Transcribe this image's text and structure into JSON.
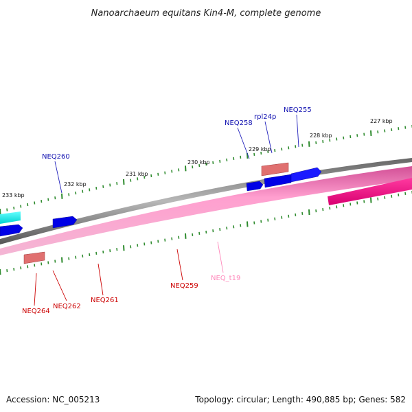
{
  "title": "Nanoarchaeum equitans Kin4-M, complete genome",
  "footer": {
    "accession": "Accession: NC_005213",
    "summary": "Topology: circular; Length: 490,885 bp; Genes: 582"
  },
  "colors": {
    "forward_gene": "#0000e6",
    "forward_label": "#1010b0",
    "reverse_label": "#cc0000",
    "rna_gene": "#e07070",
    "trna_label": "#ff88bb",
    "backbone": "#888888",
    "gc_band": "#ff99cc",
    "tick": "#2e8b2e",
    "highlight_forward": "#00e5e5",
    "highlight_reverse": "#ee1188"
  },
  "kbp_labels": [
    "227 kbp",
    "228 kbp",
    "229 kbp",
    "230 kbp",
    "231 kbp",
    "232 kbp",
    "233 kbp"
  ],
  "forward_labels": [
    "NEQ258",
    "rpl24p",
    "NEQ255",
    "NEQ260"
  ],
  "reverse_labels": [
    "NEQ264",
    "NEQ262",
    "NEQ261",
    "NEQ259",
    "NEQ_t19"
  ]
}
